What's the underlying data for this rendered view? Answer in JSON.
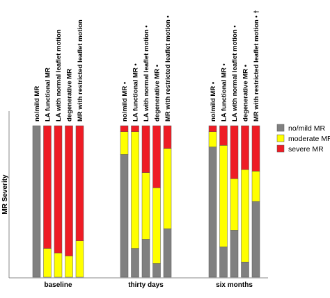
{
  "chart_data": {
    "type": "bar",
    "stacked": true,
    "ylabel": "MR Severity",
    "ylim": [
      0,
      100
    ],
    "groups": [
      {
        "label": "baseline",
        "bars": [
          {
            "name": "no/mild MR",
            "values": {
              "no/mild MR": 100,
              "moderate MR": 0,
              "severe MR": 0
            }
          },
          {
            "name": "LA functional MR",
            "values": {
              "no/mild MR": 0,
              "moderate MR": 19,
              "severe MR": 81
            }
          },
          {
            "name": "LA with normal leaflet motion",
            "values": {
              "no/mild MR": 0,
              "moderate MR": 16,
              "severe MR": 84
            }
          },
          {
            "name": "degenerative MR",
            "values": {
              "no/mild MR": 0,
              "moderate MR": 14,
              "severe MR": 86
            }
          },
          {
            "name": "MR with restricted leaflet motion",
            "values": {
              "no/mild MR": 0,
              "moderate MR": 24,
              "severe MR": 76
            }
          }
        ]
      },
      {
        "label": "thirty days",
        "bars": [
          {
            "name": "no/mild MR •",
            "values": {
              "no/mild MR": 81,
              "moderate MR": 15,
              "severe MR": 4
            }
          },
          {
            "name": "LA functional MR •",
            "values": {
              "no/mild MR": 19,
              "moderate MR": 77,
              "severe MR": 4
            }
          },
          {
            "name": "LA with normal leaflet motion •",
            "values": {
              "no/mild MR": 25,
              "moderate MR": 44,
              "severe MR": 31
            }
          },
          {
            "name": "degenerative MR •",
            "values": {
              "no/mild MR": 9,
              "moderate MR": 50,
              "severe MR": 41
            }
          },
          {
            "name": "MR with restricted leaflet motion •",
            "values": {
              "no/mild MR": 32,
              "moderate MR": 53,
              "severe MR": 15
            }
          }
        ]
      },
      {
        "label": "six months",
        "bars": [
          {
            "name": "no/mild MR •",
            "values": {
              "no/mild MR": 86,
              "moderate MR": 10,
              "severe MR": 4
            }
          },
          {
            "name": "LA functional MR •",
            "values": {
              "no/mild MR": 20,
              "moderate MR": 67,
              "severe MR": 13
            }
          },
          {
            "name": "LA with normal leaflet motion •",
            "values": {
              "no/mild MR": 31,
              "moderate MR": 34,
              "severe MR": 35
            }
          },
          {
            "name": "degenerative MR •",
            "values": {
              "no/mild MR": 10,
              "moderate MR": 61,
              "severe MR": 29
            }
          },
          {
            "name": "MR with restricted leaflet motion • †",
            "values": {
              "no/mild MR": 50,
              "moderate MR": 20,
              "severe MR": 30
            }
          }
        ]
      }
    ],
    "series": [
      {
        "name": "no/mild MR",
        "color": "#808080"
      },
      {
        "name": "moderate MR",
        "color": "#ffff00"
      },
      {
        "name": "severe MR",
        "color": "#ee1c25"
      }
    ],
    "legend_position": "right",
    "grid": false
  }
}
